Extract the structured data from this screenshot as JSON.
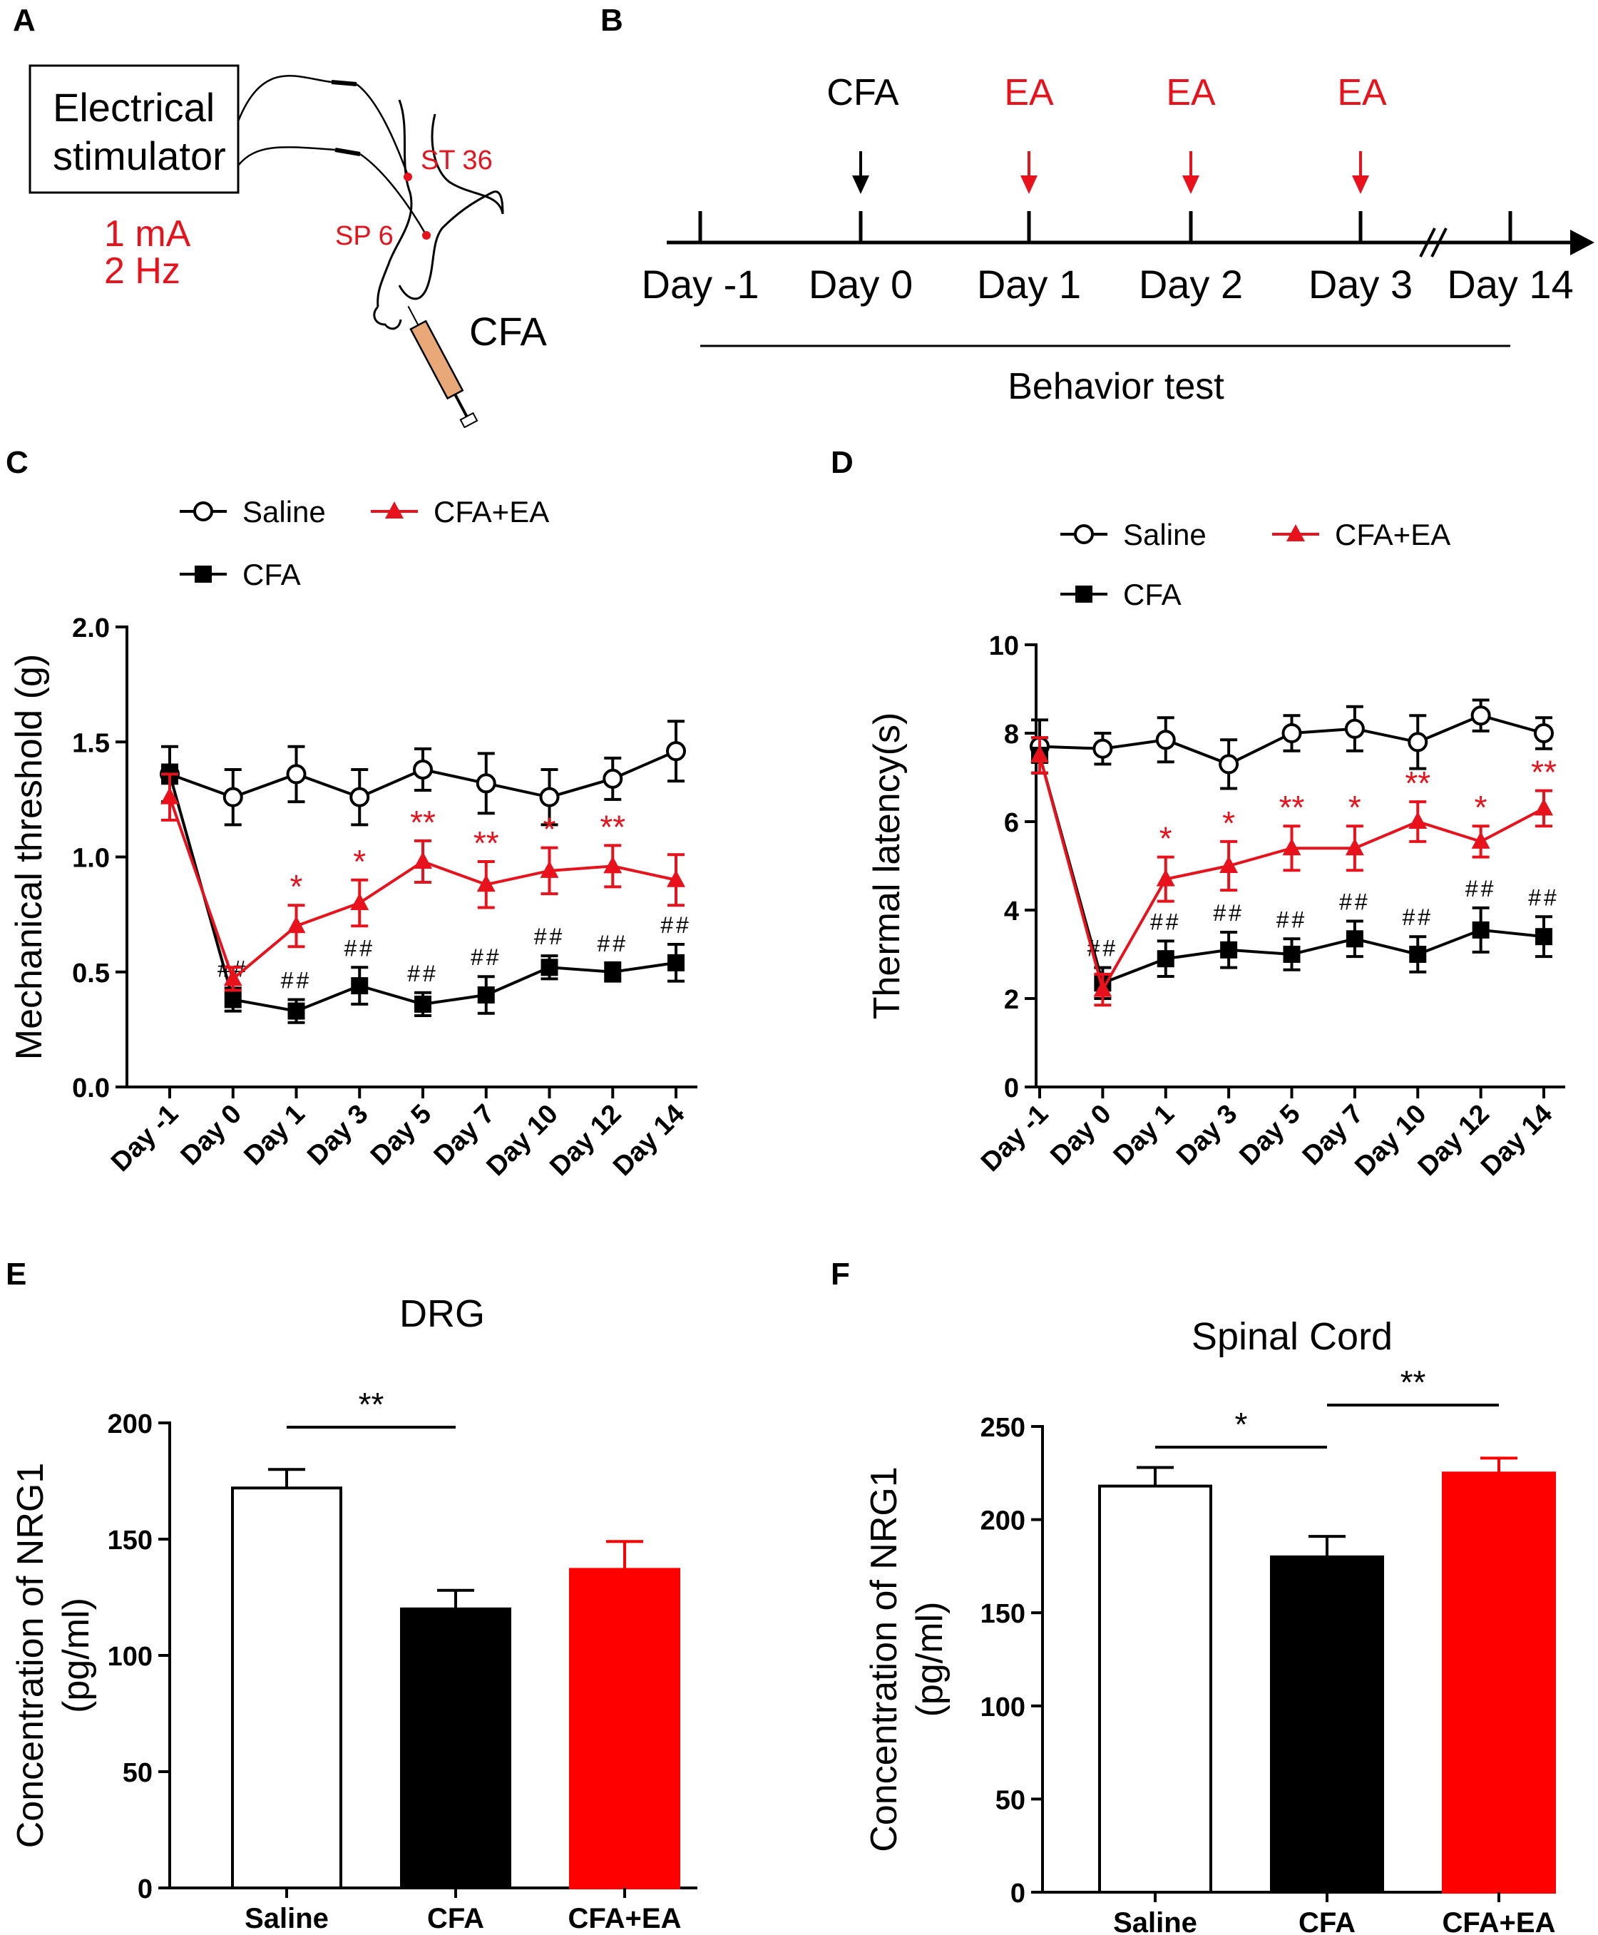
{
  "panels": {
    "a": {
      "label": "A",
      "stimulator_line1": "Electrical",
      "stimulator_line2": "stimulator",
      "current": "1 mA",
      "frequency": "2 Hz",
      "st36": "ST 36",
      "sp6": "SP 6",
      "cfa": "CFA"
    },
    "b": {
      "label": "B",
      "events": [
        {
          "label": "CFA",
          "color": "#000000"
        },
        {
          "label": "EA",
          "color": "#e8121d"
        },
        {
          "label": "EA",
          "color": "#e8121d"
        },
        {
          "label": "EA",
          "color": "#e8121d"
        }
      ],
      "days": [
        "Day -1",
        "Day 0",
        "Day 1",
        "Day 2",
        "Day 3",
        "Day 14"
      ],
      "behavior_test": "Behavior test"
    },
    "c": {
      "label": "C"
    },
    "d": {
      "label": "D"
    },
    "e": {
      "label": "E"
    },
    "f": {
      "label": "F"
    }
  },
  "colors": {
    "saline": "#000000",
    "cfa": "#000000",
    "cfa_ea": "#e8121d"
  },
  "chart_data": [
    {
      "id": "C",
      "type": "line",
      "ylabel": "Mechanical threshold (g)",
      "xlabel": "",
      "ylim": [
        0,
        2.0
      ],
      "yticks": [
        "0.0",
        "0.5",
        "1.0",
        "1.5",
        "2.0"
      ],
      "ytick_values": [
        0,
        0.5,
        1.0,
        1.5,
        2.0
      ],
      "categories": [
        "Day -1",
        "Day 0",
        "Day 1",
        "Day 3",
        "Day 5",
        "Day 7",
        "Day 10",
        "Day 12",
        "Day 14"
      ],
      "legend": [
        "Saline",
        "CFA+EA",
        "CFA"
      ],
      "series": [
        {
          "name": "Saline",
          "marker": "open-circle",
          "values": [
            1.36,
            1.26,
            1.36,
            1.26,
            1.38,
            1.32,
            1.26,
            1.34,
            1.46
          ],
          "errors": [
            0.12,
            0.12,
            0.12,
            0.12,
            0.09,
            0.13,
            0.12,
            0.09,
            0.13
          ]
        },
        {
          "name": "CFA+EA",
          "marker": "triangle",
          "values": [
            1.26,
            0.47,
            0.7,
            0.8,
            0.98,
            0.88,
            0.94,
            0.96,
            0.9
          ],
          "errors": [
            0.1,
            0.05,
            0.09,
            0.1,
            0.09,
            0.1,
            0.1,
            0.09,
            0.11
          ],
          "annotations": [
            "",
            "",
            "*",
            "*",
            "**",
            "**",
            "*",
            "**",
            ""
          ]
        },
        {
          "name": "CFA",
          "marker": "square",
          "values": [
            1.36,
            0.38,
            0.33,
            0.44,
            0.36,
            0.4,
            0.52,
            0.5,
            0.54
          ],
          "errors": [
            0.04,
            0.05,
            0.05,
            0.08,
            0.05,
            0.08,
            0.05,
            0.04,
            0.08
          ],
          "annotations": [
            "",
            "##",
            "##",
            "##",
            "##",
            "##",
            "##",
            "##",
            "##"
          ]
        }
      ]
    },
    {
      "id": "D",
      "type": "line",
      "ylabel": "Thermal latency(s)",
      "xlabel": "",
      "ylim": [
        0,
        10
      ],
      "yticks": [
        "0",
        "2",
        "4",
        "6",
        "8",
        "10"
      ],
      "ytick_values": [
        0,
        2,
        4,
        6,
        8,
        10
      ],
      "categories": [
        "Day -1",
        "Day 0",
        "Day 1",
        "Day 3",
        "Day 5",
        "Day 7",
        "Day 10",
        "Day 12",
        "Day 14"
      ],
      "legend": [
        "Saline",
        "CFA+EA",
        "CFA"
      ],
      "series": [
        {
          "name": "Saline",
          "marker": "open-circle",
          "values": [
            7.7,
            7.65,
            7.85,
            7.3,
            8.0,
            8.1,
            7.8,
            8.4,
            8.0
          ],
          "errors": [
            0.6,
            0.35,
            0.5,
            0.55,
            0.4,
            0.5,
            0.6,
            0.35,
            0.35
          ]
        },
        {
          "name": "CFA+EA",
          "marker": "triangle",
          "values": [
            7.5,
            2.2,
            4.7,
            5.0,
            5.4,
            5.4,
            6.0,
            5.55,
            6.3
          ],
          "errors": [
            0.4,
            0.35,
            0.5,
            0.55,
            0.5,
            0.5,
            0.45,
            0.35,
            0.4
          ],
          "annotations": [
            "",
            "",
            "*",
            "*",
            "**",
            "*",
            "**",
            "*",
            "**"
          ]
        },
        {
          "name": "CFA",
          "marker": "square",
          "values": [
            7.5,
            2.35,
            2.9,
            3.1,
            3.0,
            3.35,
            3.0,
            3.55,
            3.4
          ],
          "errors": [
            0.4,
            0.35,
            0.4,
            0.4,
            0.35,
            0.4,
            0.4,
            0.5,
            0.45
          ],
          "annotations": [
            "",
            "##",
            "##",
            "##",
            "##",
            "##",
            "##",
            "##",
            "##"
          ]
        }
      ]
    },
    {
      "id": "E",
      "type": "bar",
      "title": "DRG",
      "ylabel": "Concentration of NRG1 (pg/ml)",
      "xlabel": "",
      "ylim": [
        0,
        200
      ],
      "yticks": [
        "0",
        "50",
        "100",
        "150",
        "200"
      ],
      "ytick_values": [
        0,
        50,
        100,
        150,
        200
      ],
      "categories": [
        "Saline",
        "CFA",
        "CFA+EA"
      ],
      "values": [
        172,
        120,
        137
      ],
      "errors": [
        8,
        8,
        12
      ],
      "fills": [
        "#ffffff",
        "#000000",
        "#ff0000"
      ],
      "significance": [
        {
          "from": 0,
          "to": 1,
          "label": "**"
        }
      ]
    },
    {
      "id": "F",
      "type": "bar",
      "title": "Spinal Cord",
      "ylabel": "Concentration of NRG1 (pg/ml)",
      "xlabel": "",
      "ylim": [
        0,
        250
      ],
      "yticks": [
        "0",
        "50",
        "100",
        "150",
        "200",
        "250"
      ],
      "ytick_values": [
        0,
        50,
        100,
        150,
        200,
        250
      ],
      "categories": [
        "Saline",
        "CFA",
        "CFA+EA"
      ],
      "values": [
        218,
        180,
        225
      ],
      "errors": [
        10,
        11,
        8
      ],
      "fills": [
        "#ffffff",
        "#000000",
        "#ff0000"
      ],
      "significance": [
        {
          "from": 0,
          "to": 1,
          "label": "*"
        },
        {
          "from": 1,
          "to": 2,
          "label": "**"
        }
      ]
    }
  ]
}
